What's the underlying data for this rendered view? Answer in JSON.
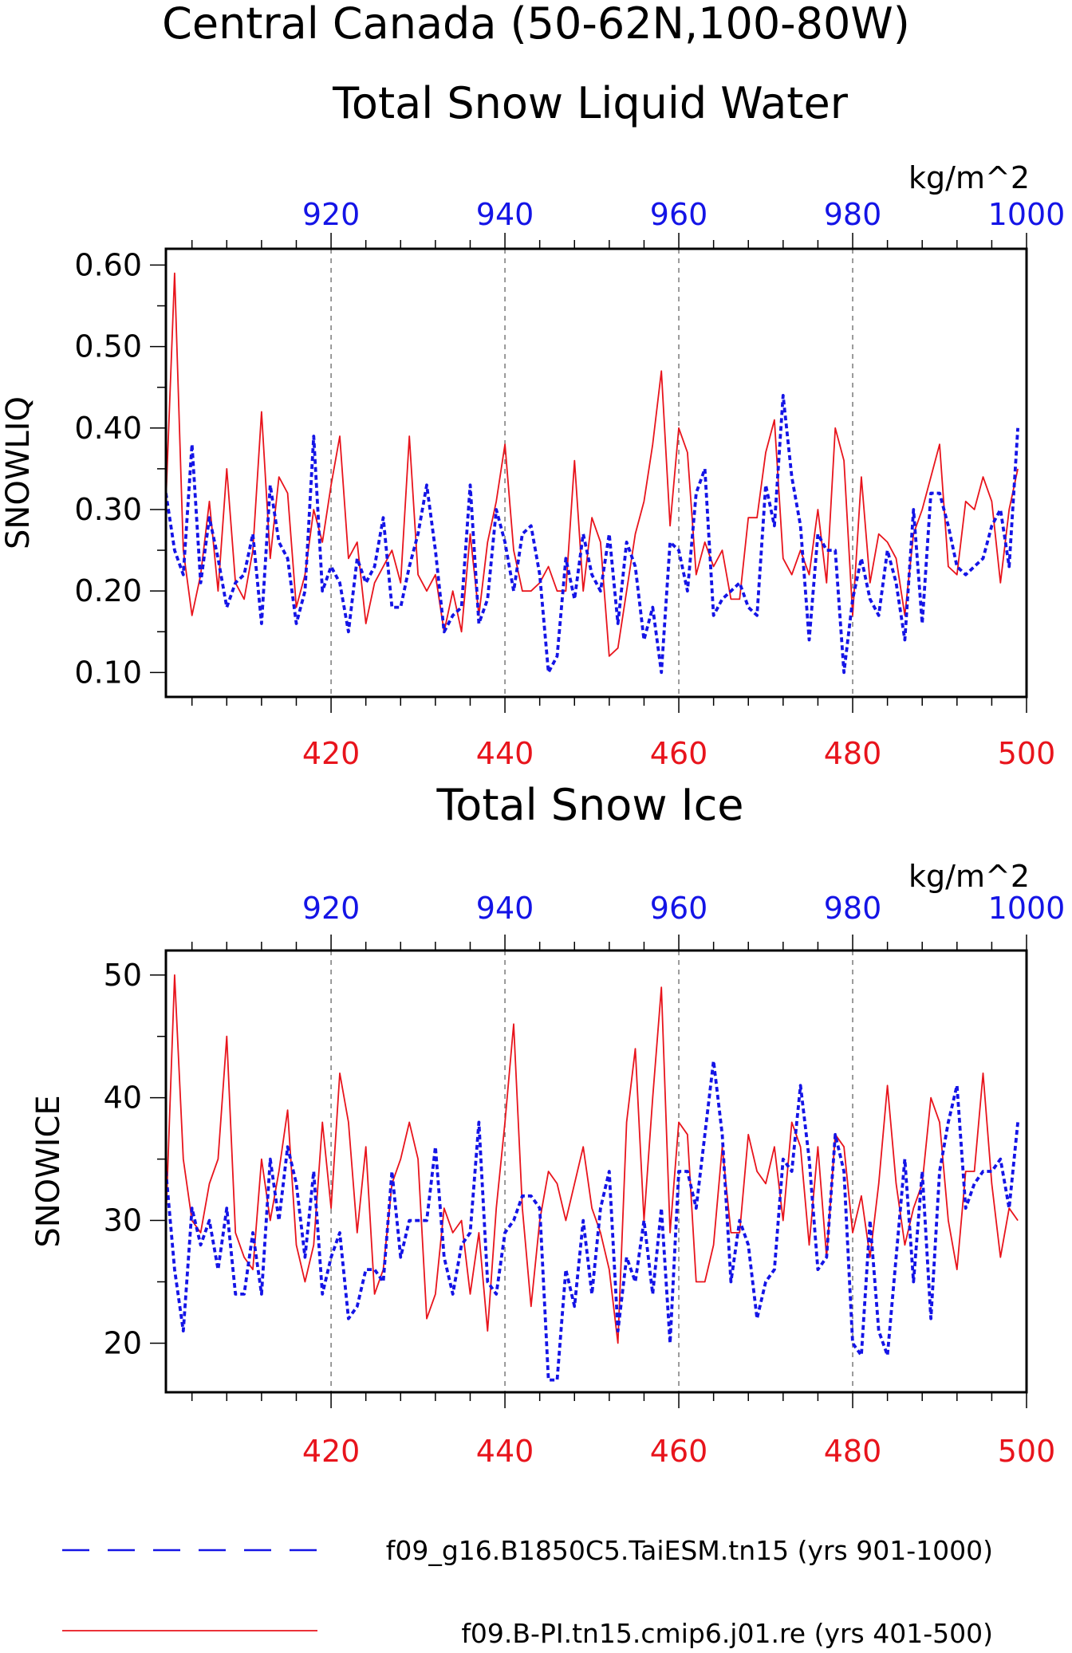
{
  "title": {
    "line1": "Central Canada (50-62N,100-80W)"
  },
  "colors": {
    "red": "#e8141c",
    "blue": "#1414e6",
    "black": "#000000"
  },
  "legend": [
    {
      "label": "f09_g16.B1850C5.TaiESM.tn15 (yrs 901-1000)",
      "color": "#1414e6",
      "style": "dashed"
    },
    {
      "label": "f09.B-PI.tn15.cmip6.j01.re (yrs 401-500)",
      "color": "#e8141c",
      "style": "solid"
    }
  ],
  "chart_data": [
    {
      "type": "line",
      "title": "Total Snow Liquid Water",
      "units": "kg/m^2",
      "ylabel": "SNOWLIQ",
      "ylim": [
        0.07,
        0.62
      ],
      "yticks": [
        0.1,
        0.2,
        0.3,
        0.4,
        0.5,
        0.6
      ],
      "yticklabels": [
        "0.10",
        "0.20",
        "0.30",
        "0.40",
        "0.50",
        "0.60"
      ],
      "bottom_axis": {
        "color": "red",
        "xlim": [
          401,
          500
        ],
        "ticks": [
          420,
          440,
          460,
          480,
          500
        ]
      },
      "top_axis": {
        "color": "blue",
        "xlim": [
          901,
          1000
        ],
        "ticks": [
          920,
          940,
          960,
          980,
          1000
        ]
      },
      "gridlines_x": [
        420,
        440,
        460,
        480
      ],
      "series": [
        {
          "name": "f09.B-PI.tn15.cmip6.j01.re (yrs 401-500)",
          "axis": "bottom",
          "color": "red",
          "style": "solid",
          "x_start": 401,
          "values": [
            0.31,
            0.59,
            0.25,
            0.17,
            0.22,
            0.31,
            0.2,
            0.35,
            0.21,
            0.19,
            0.25,
            0.42,
            0.24,
            0.34,
            0.32,
            0.18,
            0.22,
            0.3,
            0.26,
            0.33,
            0.39,
            0.24,
            0.26,
            0.16,
            0.21,
            0.23,
            0.25,
            0.21,
            0.39,
            0.22,
            0.2,
            0.22,
            0.15,
            0.2,
            0.15,
            0.27,
            0.17,
            0.26,
            0.31,
            0.38,
            0.25,
            0.2,
            0.2,
            0.21,
            0.23,
            0.2,
            0.2,
            0.36,
            0.2,
            0.29,
            0.26,
            0.12,
            0.13,
            0.2,
            0.27,
            0.31,
            0.38,
            0.47,
            0.28,
            0.4,
            0.37,
            0.22,
            0.26,
            0.23,
            0.25,
            0.19,
            0.19,
            0.29,
            0.29,
            0.37,
            0.41,
            0.24,
            0.22,
            0.25,
            0.22,
            0.3,
            0.21,
            0.4,
            0.36,
            0.17,
            0.34,
            0.21,
            0.27,
            0.26,
            0.24,
            0.17,
            0.27,
            0.3,
            0.34,
            0.38,
            0.23,
            0.22,
            0.31,
            0.3,
            0.34,
            0.31,
            0.21,
            0.3,
            0.35
          ]
        },
        {
          "name": "f09_g16.B1850C5.TaiESM.tn15 (yrs 901-1000)",
          "axis": "top",
          "color": "blue",
          "style": "dashed",
          "x_start": 901,
          "values": [
            0.32,
            0.25,
            0.22,
            0.38,
            0.21,
            0.29,
            0.24,
            0.18,
            0.21,
            0.22,
            0.27,
            0.16,
            0.33,
            0.26,
            0.24,
            0.16,
            0.2,
            0.39,
            0.2,
            0.23,
            0.21,
            0.15,
            0.24,
            0.21,
            0.23,
            0.29,
            0.18,
            0.18,
            0.23,
            0.27,
            0.33,
            0.25,
            0.15,
            0.17,
            0.18,
            0.33,
            0.16,
            0.19,
            0.3,
            0.26,
            0.2,
            0.27,
            0.28,
            0.22,
            0.1,
            0.12,
            0.24,
            0.19,
            0.27,
            0.22,
            0.2,
            0.27,
            0.16,
            0.26,
            0.23,
            0.14,
            0.18,
            0.1,
            0.26,
            0.25,
            0.2,
            0.32,
            0.35,
            0.17,
            0.19,
            0.2,
            0.21,
            0.18,
            0.17,
            0.33,
            0.28,
            0.44,
            0.34,
            0.28,
            0.14,
            0.27,
            0.25,
            0.25,
            0.1,
            0.19,
            0.24,
            0.19,
            0.17,
            0.25,
            0.21,
            0.14,
            0.3,
            0.16,
            0.32,
            0.32,
            0.28,
            0.23,
            0.22,
            0.23,
            0.24,
            0.28,
            0.3,
            0.23,
            0.4
          ]
        }
      ]
    },
    {
      "type": "line",
      "title": "Total Snow Ice",
      "units": "kg/m^2",
      "ylabel": "SNOWICE",
      "ylim": [
        16,
        52
      ],
      "yticks": [
        20,
        30,
        40,
        50
      ],
      "yticklabels": [
        "20",
        "30",
        "40",
        "50"
      ],
      "bottom_axis": {
        "color": "red",
        "xlim": [
          401,
          500
        ],
        "ticks": [
          420,
          440,
          460,
          480,
          500
        ]
      },
      "top_axis": {
        "color": "blue",
        "xlim": [
          901,
          1000
        ],
        "ticks": [
          920,
          940,
          960,
          980,
          1000
        ]
      },
      "gridlines_x": [
        420,
        440,
        460,
        480
      ],
      "series": [
        {
          "name": "f09.B-PI.tn15.cmip6.j01.re (yrs 401-500)",
          "axis": "bottom",
          "color": "red",
          "style": "solid",
          "x_start": 401,
          "values": [
            30,
            50,
            35,
            30,
            29,
            33,
            35,
            45,
            29,
            27,
            26,
            35,
            30,
            34,
            39,
            28,
            25,
            28,
            38,
            31,
            42,
            38,
            29,
            36,
            24,
            26,
            33,
            35,
            38,
            35,
            22,
            24,
            31,
            29,
            30,
            24,
            29,
            21,
            31,
            38,
            46,
            31,
            23,
            30,
            34,
            33,
            30,
            33,
            36,
            31,
            29,
            26,
            20,
            38,
            44,
            30,
            40,
            49,
            29,
            38,
            37,
            25,
            25,
            28,
            36,
            29,
            29,
            37,
            34,
            33,
            36,
            30,
            38,
            36,
            28,
            36,
            27,
            37,
            36,
            29,
            32,
            27,
            33,
            41,
            33,
            28,
            31,
            33,
            40,
            38,
            30,
            26,
            34,
            34,
            42,
            33,
            27,
            31,
            30
          ]
        },
        {
          "name": "f09_g16.B1850C5.TaiESM.tn15 (yrs 901-1000)",
          "axis": "top",
          "color": "blue",
          "style": "dashed",
          "x_start": 901,
          "values": [
            34,
            26,
            21,
            31,
            28,
            30,
            26,
            31,
            24,
            24,
            29,
            24,
            35,
            30,
            36,
            33,
            27,
            34,
            24,
            27,
            29,
            22,
            23,
            26,
            26,
            25,
            34,
            27,
            30,
            30,
            30,
            36,
            27,
            24,
            28,
            29,
            38,
            25,
            24,
            29,
            30,
            32,
            32,
            31,
            17,
            17,
            26,
            23,
            30,
            24,
            31,
            34,
            21,
            27,
            25,
            30,
            24,
            31,
            20,
            34,
            34,
            31,
            37,
            43,
            37,
            25,
            30,
            28,
            22,
            25,
            26,
            35,
            34,
            41,
            35,
            26,
            27,
            37,
            34,
            20,
            19,
            30,
            21,
            19,
            27,
            35,
            25,
            34,
            22,
            34,
            38,
            41,
            31,
            33,
            34,
            34,
            35,
            31,
            38
          ]
        }
      ]
    }
  ]
}
